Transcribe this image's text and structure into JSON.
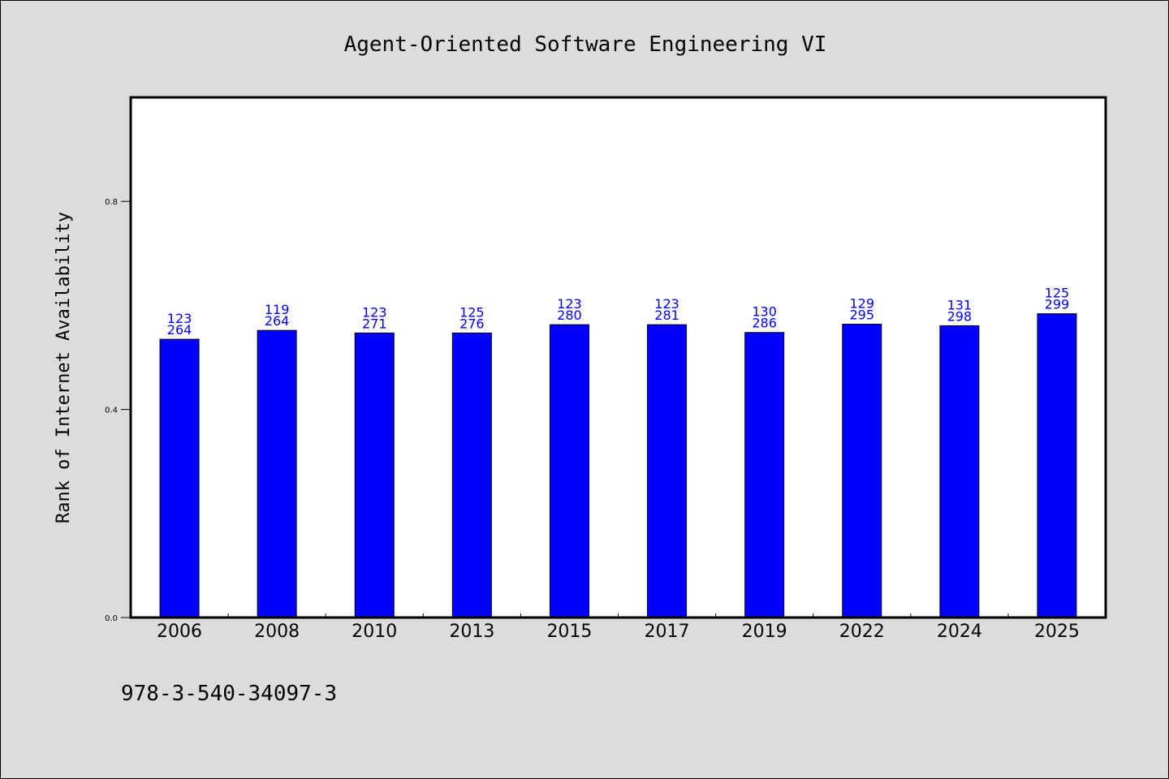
{
  "chart_data": {
    "type": "bar",
    "title": "Agent-Oriented Software Engineering VI",
    "xlabel": "",
    "ylabel": "Rank of Internet Availability",
    "categories": [
      "2006",
      "2008",
      "2010",
      "2013",
      "2015",
      "2017",
      "2019",
      "2022",
      "2024",
      "2025"
    ],
    "series": [
      {
        "values": [
          0.535,
          0.552,
          0.547,
          0.547,
          0.563,
          0.563,
          0.548,
          0.564,
          0.561,
          0.584
        ],
        "label_top": [
          "123",
          "119",
          "123",
          "125",
          "123",
          "123",
          "130",
          "129",
          "131",
          "125"
        ],
        "label_bottom": [
          "264",
          "264",
          "271",
          "276",
          "280",
          "281",
          "286",
          "295",
          "298",
          "299"
        ],
        "color": "#0000ff"
      }
    ],
    "yticks": [
      "0.0",
      "0.4",
      "0.8"
    ],
    "ylim": [
      0,
      1.0
    ],
    "grid": false,
    "legend": "none"
  },
  "footnote": "978-3-540-34097-3",
  "colors": {
    "background": "#dcdcdc",
    "plot_background": "#ffffff",
    "bar": "#0000ff",
    "data_label": "#0000ff"
  }
}
